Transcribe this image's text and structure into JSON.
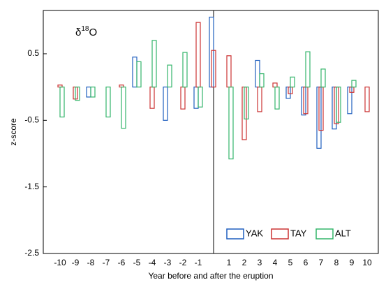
{
  "chart_data": {
    "type": "bar",
    "annotation": [
      "δ",
      "18",
      "O"
    ],
    "x_label": "Year before and after the eruption",
    "y_label": "z-score",
    "categories": [
      "-10",
      "-9",
      "-8",
      "-7",
      "-6",
      "-5",
      "-4",
      "-3",
      "-2",
      "-1",
      null,
      "1",
      "2",
      "3",
      "4",
      "5",
      "6",
      "7",
      "8",
      "9",
      "10"
    ],
    "series": [
      {
        "name": "YAK",
        "color": "#1f5fbf",
        "values": [
          0,
          0,
          -0.15,
          0,
          0,
          0.45,
          0,
          -0.5,
          0,
          -0.32,
          1.05,
          0,
          0,
          0.4,
          0,
          -0.17,
          -0.42,
          -0.92,
          -0.63,
          -0.4,
          0
        ]
      },
      {
        "name": "TAY",
        "color": "#cc3333",
        "values": [
          0.03,
          -0.18,
          0,
          0,
          0.03,
          0,
          -0.32,
          0,
          -0.33,
          0.97,
          0.55,
          0.47,
          -0.79,
          -0.37,
          0.06,
          -0.1,
          -0.4,
          -0.65,
          -0.55,
          -0.08,
          -0.37
        ]
      },
      {
        "name": "ALT",
        "color": "#33b56a",
        "values": [
          -0.45,
          -0.2,
          -0.15,
          -0.45,
          -0.62,
          0.38,
          0.7,
          0.33,
          0.52,
          -0.3,
          0,
          -1.08,
          -0.48,
          0.2,
          -0.33,
          0.15,
          0.53,
          0.27,
          -0.53,
          0.1,
          0
        ]
      }
    ],
    "ylim": [
      -2.5,
      1.15
    ],
    "yticks": [
      0.5,
      -0.5,
      -1.5,
      -2.5
    ],
    "legend": "lower right"
  }
}
